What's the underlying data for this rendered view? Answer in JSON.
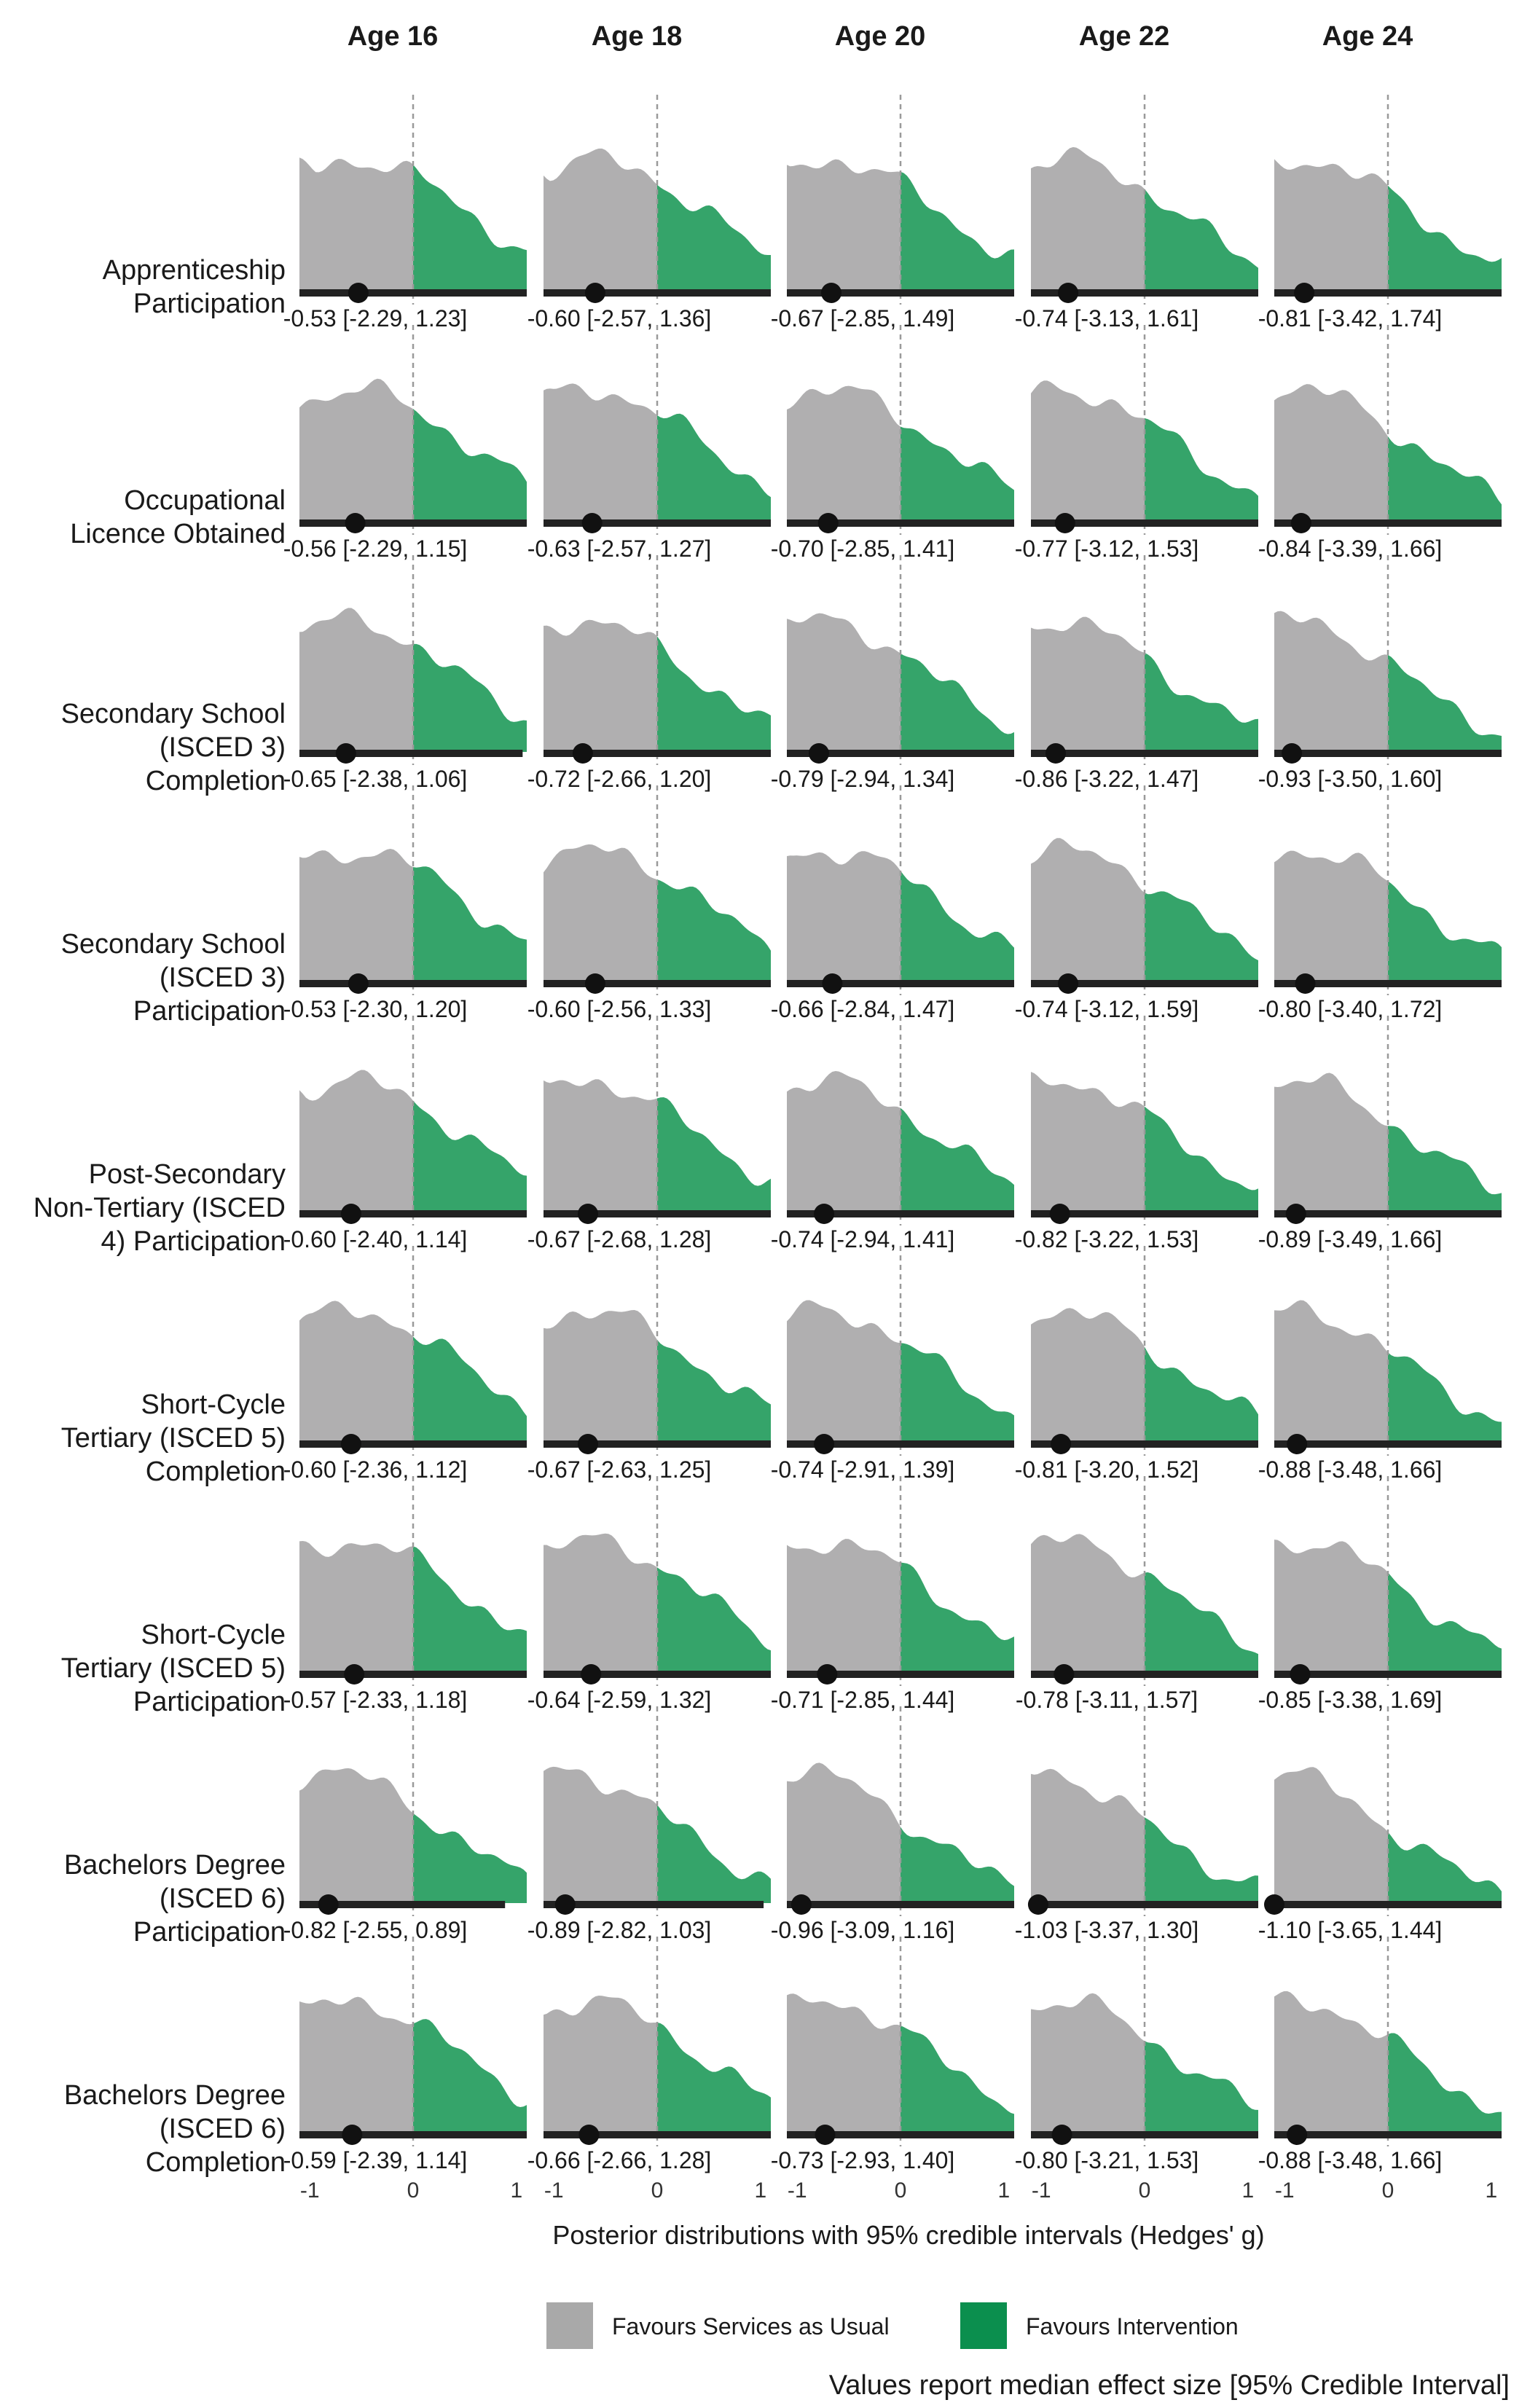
{
  "chart_data": {
    "type": "area",
    "subtype": "posterior density ridges with median and 95% credible interval",
    "columns": [
      "Age 16",
      "Age 18",
      "Age 20",
      "Age 22",
      "Age 24"
    ],
    "rows": [
      {
        "label_lines": [
          "Apprenticeship",
          "Participation"
        ],
        "medians": [
          -0.53,
          -0.6,
          -0.67,
          -0.74,
          -0.81
        ],
        "ci": [
          [
            -2.29,
            1.23
          ],
          [
            -2.57,
            1.36
          ],
          [
            -2.85,
            1.49
          ],
          [
            -3.13,
            1.61
          ],
          [
            -3.42,
            1.74
          ]
        ],
        "texts": [
          "-0.53 [-2.29, 1.23]",
          "-0.60 [-2.57, 1.36]",
          "-0.67 [-2.85, 1.49]",
          "-0.74 [-3.13, 1.61]",
          "-0.81 [-3.42, 1.74]"
        ]
      },
      {
        "label_lines": [
          "Occupational",
          "Licence Obtained"
        ],
        "medians": [
          -0.56,
          -0.63,
          -0.7,
          -0.77,
          -0.84
        ],
        "ci": [
          [
            -2.29,
            1.15
          ],
          [
            -2.57,
            1.27
          ],
          [
            -2.85,
            1.41
          ],
          [
            -3.12,
            1.53
          ],
          [
            -3.39,
            1.66
          ]
        ],
        "texts": [
          "-0.56 [-2.29, 1.15]",
          "-0.63 [-2.57, 1.27]",
          "-0.70 [-2.85, 1.41]",
          "-0.77 [-3.12, 1.53]",
          "-0.84 [-3.39, 1.66]"
        ]
      },
      {
        "label_lines": [
          "Secondary School",
          "(ISCED 3)",
          "Completion"
        ],
        "medians": [
          -0.65,
          -0.72,
          -0.79,
          -0.86,
          -0.93
        ],
        "ci": [
          [
            -2.38,
            1.06
          ],
          [
            -2.66,
            1.2
          ],
          [
            -2.94,
            1.34
          ],
          [
            -3.22,
            1.47
          ],
          [
            -3.5,
            1.6
          ]
        ],
        "texts": [
          "-0.65 [-2.38, 1.06]",
          "-0.72 [-2.66, 1.20]",
          "-0.79 [-2.94, 1.34]",
          "-0.86 [-3.22, 1.47]",
          "-0.93 [-3.50, 1.60]"
        ]
      },
      {
        "label_lines": [
          "Secondary School",
          "(ISCED 3)",
          "Participation"
        ],
        "medians": [
          -0.53,
          -0.6,
          -0.66,
          -0.74,
          -0.8
        ],
        "ci": [
          [
            -2.3,
            1.2
          ],
          [
            -2.56,
            1.33
          ],
          [
            -2.84,
            1.47
          ],
          [
            -3.12,
            1.59
          ],
          [
            -3.4,
            1.72
          ]
        ],
        "texts": [
          "-0.53 [-2.30, 1.20]",
          "-0.60 [-2.56, 1.33]",
          "-0.66 [-2.84, 1.47]",
          "-0.74 [-3.12, 1.59]",
          "-0.80 [-3.40, 1.72]"
        ]
      },
      {
        "label_lines": [
          "Post-Secondary",
          "Non-Tertiary (ISCED",
          "4) Participation"
        ],
        "medians": [
          -0.6,
          -0.67,
          -0.74,
          -0.82,
          -0.89
        ],
        "ci": [
          [
            -2.4,
            1.14
          ],
          [
            -2.68,
            1.28
          ],
          [
            -2.94,
            1.41
          ],
          [
            -3.22,
            1.53
          ],
          [
            -3.49,
            1.66
          ]
        ],
        "texts": [
          "-0.60 [-2.40, 1.14]",
          "-0.67 [-2.68, 1.28]",
          "-0.74 [-2.94, 1.41]",
          "-0.82 [-3.22, 1.53]",
          "-0.89 [-3.49, 1.66]"
        ]
      },
      {
        "label_lines": [
          "Short-Cycle",
          "Tertiary (ISCED 5)",
          "Completion"
        ],
        "medians": [
          -0.6,
          -0.67,
          -0.74,
          -0.81,
          -0.88
        ],
        "ci": [
          [
            -2.36,
            1.12
          ],
          [
            -2.63,
            1.25
          ],
          [
            -2.91,
            1.39
          ],
          [
            -3.2,
            1.52
          ],
          [
            -3.48,
            1.66
          ]
        ],
        "texts": [
          "-0.60 [-2.36, 1.12]",
          "-0.67 [-2.63, 1.25]",
          "-0.74 [-2.91, 1.39]",
          "-0.81 [-3.20, 1.52]",
          "-0.88 [-3.48, 1.66]"
        ]
      },
      {
        "label_lines": [
          "Short-Cycle",
          "Tertiary (ISCED 5)",
          "Participation"
        ],
        "medians": [
          -0.57,
          -0.64,
          -0.71,
          -0.78,
          -0.85
        ],
        "ci": [
          [
            -2.33,
            1.18
          ],
          [
            -2.59,
            1.32
          ],
          [
            -2.85,
            1.44
          ],
          [
            -3.11,
            1.57
          ],
          [
            -3.38,
            1.69
          ]
        ],
        "texts": [
          "-0.57 [-2.33, 1.18]",
          "-0.64 [-2.59, 1.32]",
          "-0.71 [-2.85, 1.44]",
          "-0.78 [-3.11, 1.57]",
          "-0.85 [-3.38, 1.69]"
        ]
      },
      {
        "label_lines": [
          "Bachelors Degree",
          "(ISCED 6)",
          "Participation"
        ],
        "medians": [
          -0.82,
          -0.89,
          -0.96,
          -1.03,
          -1.1
        ],
        "ci": [
          [
            -2.55,
            0.89
          ],
          [
            -2.82,
            1.03
          ],
          [
            -3.09,
            1.16
          ],
          [
            -3.37,
            1.3
          ],
          [
            -3.65,
            1.44
          ]
        ],
        "texts": [
          "-0.82 [-2.55, 0.89]",
          "-0.89 [-2.82, 1.03]",
          "-0.96 [-3.09, 1.16]",
          "-1.03 [-3.37, 1.30]",
          "-1.10 [-3.65, 1.44]"
        ]
      },
      {
        "label_lines": [
          "Bachelors Degree",
          "(ISCED 6)",
          "Completion"
        ],
        "medians": [
          -0.59,
          -0.66,
          -0.73,
          -0.8,
          -0.88
        ],
        "ci": [
          [
            -2.39,
            1.14
          ],
          [
            -2.66,
            1.28
          ],
          [
            -2.93,
            1.4
          ],
          [
            -3.21,
            1.53
          ],
          [
            -3.48,
            1.66
          ]
        ],
        "texts": [
          "-0.59 [-2.39, 1.14]",
          "-0.66 [-2.66, 1.28]",
          "-0.73 [-2.93, 1.40]",
          "-0.80 [-3.21, 1.53]",
          "-0.88 [-3.48, 1.66]"
        ]
      }
    ],
    "x_ticks": [
      "-1",
      "0",
      "1"
    ],
    "x_tick_values": [
      -1,
      0,
      1
    ],
    "xlim": [
      -1.1,
      1.1
    ],
    "xlabel": "Posterior distributions with 95% credible intervals (Hedges' g)",
    "reference_line": 0,
    "legend": {
      "position": "bottom",
      "items": [
        {
          "label": "Favours Services as Usual",
          "color": "#a9a9a9"
        },
        {
          "label": "Favours Intervention",
          "color": "#0b8f4e"
        }
      ]
    },
    "caption": "Values report median effect size [95% Credible Interval]",
    "colors": {
      "negative_fill": "#b0afb0",
      "positive_fill": "#35a46a",
      "interval": "#222222",
      "point": "#111111",
      "zero_line": "#9a9a9a"
    },
    "grid": false
  }
}
